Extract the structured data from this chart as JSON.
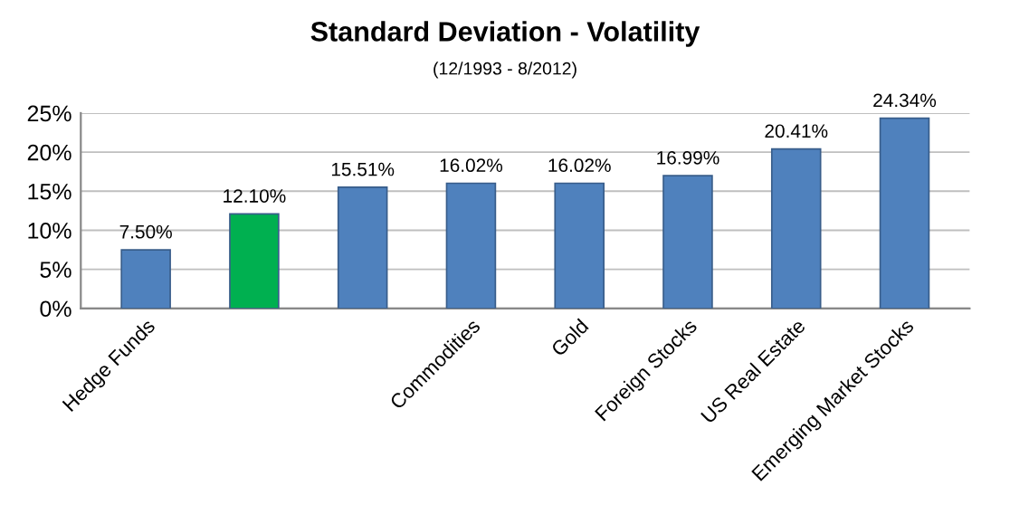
{
  "chart_data": {
    "type": "bar",
    "title": "Standard Deviation - Volatility",
    "subtitle": "(12/1993 - 8/2012)",
    "categories": [
      "Hedge Funds",
      null,
      null,
      "Commodities",
      "Gold",
      "Foreign Stocks",
      "US Real Estate",
      "Emerging Market Stocks"
    ],
    "values": [
      7.5,
      12.1,
      15.51,
      16.02,
      16.02,
      16.99,
      20.41,
      24.34
    ],
    "colors": [
      "#4f81bd",
      "#00b050",
      "#4f81bd",
      "#4f81bd",
      "#4f81bd",
      "#4f81bd",
      "#4f81bd",
      "#4f81bd"
    ],
    "value_labels": [
      "7.50%",
      "12.10%",
      "15.51%",
      "16.02%",
      "16.02%",
      "16.99%",
      "20.41%",
      "24.34%"
    ],
    "ylim": [
      0,
      25
    ],
    "yticks": [
      {
        "value": 0,
        "label": "0%"
      },
      {
        "value": 5,
        "label": "5%"
      },
      {
        "value": 10,
        "label": "10%"
      },
      {
        "value": 15,
        "label": "15%"
      },
      {
        "value": 20,
        "label": "20%"
      },
      {
        "value": 25,
        "label": "25%"
      }
    ],
    "grid": "y",
    "legend": false
  }
}
